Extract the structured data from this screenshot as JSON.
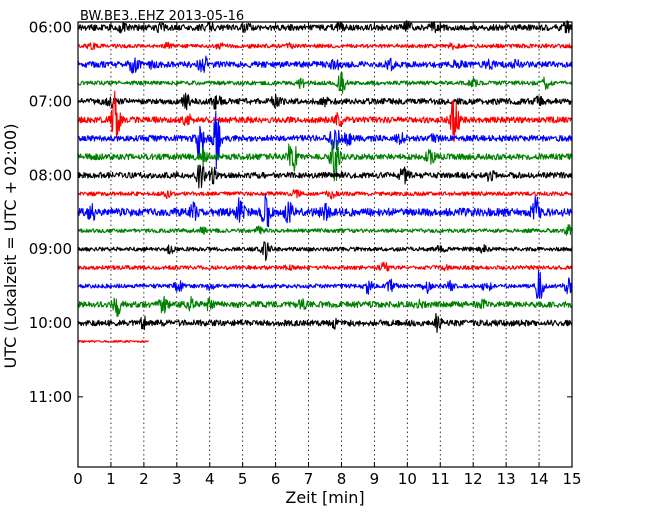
{
  "chart_data": {
    "type": "line",
    "subtype": "dayplot",
    "title": "BW.BE3..EHZ 2013-05-16",
    "xlabel": "Zeit  [min]",
    "ylabel": "UTC (Lokalzeit = UTC + 02:00)",
    "xlim": [
      0,
      15
    ],
    "x_ticks": [
      "0",
      "1",
      "2",
      "3",
      "4",
      "5",
      "6",
      "7",
      "8",
      "9",
      "10",
      "11",
      "12",
      "13",
      "14",
      "15"
    ],
    "y_ticks": [
      "06:00",
      "07:00",
      "08:00",
      "09:00",
      "10:00",
      "11:00"
    ],
    "interval_minutes": 15,
    "grid_x": "dotted",
    "trace_colors": [
      "#000000",
      "#ff0000",
      "#0000ff",
      "#008000"
    ],
    "traces": [
      {
        "start": "06:00",
        "amp": 3,
        "end_min": 15,
        "events": [
          [
            1.35,
            3
          ],
          [
            2.5,
            3
          ],
          [
            4,
            3
          ],
          [
            5.1,
            3
          ],
          [
            7.9,
            4
          ],
          [
            10,
            5
          ],
          [
            10.8,
            3
          ],
          [
            14.8,
            6
          ]
        ]
      },
      {
        "start": "06:15",
        "amp": 2,
        "end_min": 15,
        "events": [
          [
            0.4,
            2
          ],
          [
            2.7,
            2
          ],
          [
            4.3,
            2
          ],
          [
            6.4,
            2
          ],
          [
            11.4,
            3
          ]
        ]
      },
      {
        "start": "06:30",
        "amp": 3,
        "end_min": 15,
        "events": [
          [
            1.7,
            9
          ],
          [
            2.3,
            4
          ],
          [
            3.8,
            11
          ],
          [
            7.8,
            5
          ],
          [
            9.5,
            4
          ],
          [
            11.5,
            3
          ],
          [
            12.5,
            3
          ],
          [
            13.3,
            3
          ]
        ]
      },
      {
        "start": "06:45",
        "amp": 2,
        "end_min": 15,
        "events": [
          [
            6.8,
            5
          ],
          [
            8.0,
            11
          ],
          [
            12.0,
            3
          ],
          [
            14.2,
            5
          ]
        ]
      },
      {
        "start": "07:00",
        "amp": 3,
        "end_min": 15,
        "events": [
          [
            1.0,
            4
          ],
          [
            3.3,
            6
          ],
          [
            4.2,
            6
          ],
          [
            6.0,
            5
          ],
          [
            7.5,
            3
          ],
          [
            14.0,
            3
          ]
        ]
      },
      {
        "start": "07:15",
        "amp": 3,
        "end_min": 15,
        "events": [
          [
            1.15,
            28
          ],
          [
            3.3,
            6
          ],
          [
            7.9,
            5
          ],
          [
            11.45,
            27
          ]
        ]
      },
      {
        "start": "07:30",
        "amp": 3,
        "end_min": 15,
        "events": [
          [
            3.7,
            18
          ],
          [
            4.2,
            28
          ],
          [
            7.8,
            13
          ],
          [
            8.2,
            6
          ],
          [
            9.8,
            4
          ],
          [
            10.8,
            3
          ]
        ]
      },
      {
        "start": "07:45",
        "amp": 3,
        "end_min": 15,
        "events": [
          [
            3.8,
            6
          ],
          [
            6.5,
            20
          ],
          [
            7.8,
            26
          ],
          [
            10.7,
            6
          ]
        ]
      },
      {
        "start": "08:00",
        "amp": 3,
        "end_min": 15,
        "events": [
          [
            3.7,
            14
          ],
          [
            4.1,
            6
          ],
          [
            9.9,
            7
          ],
          [
            12.5,
            4
          ]
        ]
      },
      {
        "start": "08:15",
        "amp": 2,
        "end_min": 15,
        "events": [
          [
            2.7,
            3
          ],
          [
            6.6,
            3
          ],
          [
            7.7,
            5
          ]
        ]
      },
      {
        "start": "08:30",
        "amp": 4,
        "end_min": 15,
        "events": [
          [
            0.4,
            8
          ],
          [
            3.5,
            8
          ],
          [
            4.9,
            14
          ],
          [
            5.7,
            18
          ],
          [
            6.4,
            8
          ],
          [
            7.5,
            7
          ],
          [
            13.9,
            13
          ]
        ]
      },
      {
        "start": "08:45",
        "amp": 2,
        "end_min": 15,
        "events": [
          [
            3.8,
            5
          ],
          [
            5.5,
            3
          ],
          [
            14.9,
            5
          ]
        ]
      },
      {
        "start": "09:00",
        "amp": 2,
        "end_min": 15,
        "events": [
          [
            2.8,
            3
          ],
          [
            5.7,
            10
          ],
          [
            11.0,
            3
          ],
          [
            12.3,
            3
          ]
        ]
      },
      {
        "start": "09:15",
        "amp": 2,
        "end_min": 15,
        "events": [
          [
            6.4,
            2
          ],
          [
            9.3,
            4
          ],
          [
            11.2,
            2
          ]
        ]
      },
      {
        "start": "09:30",
        "amp": 2,
        "end_min": 15,
        "events": [
          [
            3.05,
            5
          ],
          [
            4.0,
            3
          ],
          [
            8.8,
            7
          ],
          [
            9.5,
            6
          ],
          [
            10.6,
            8
          ],
          [
            11.3,
            5
          ],
          [
            12.4,
            6
          ],
          [
            14.0,
            15
          ],
          [
            14.9,
            8
          ]
        ]
      },
      {
        "start": "09:45",
        "amp": 3,
        "end_min": 15,
        "events": [
          [
            1.2,
            9
          ],
          [
            2.6,
            7
          ],
          [
            3.4,
            6
          ],
          [
            4.0,
            5
          ],
          [
            6.8,
            4
          ],
          [
            10.3,
            4
          ],
          [
            12.3,
            3
          ]
        ]
      },
      {
        "start": "10:00",
        "amp": 3,
        "end_min": 15,
        "events": [
          [
            2.0,
            5
          ],
          [
            7.8,
            4
          ],
          [
            10.9,
            7
          ]
        ]
      },
      {
        "start": "10:15",
        "amp": 1,
        "end_min": 2.15,
        "events": []
      }
    ]
  }
}
